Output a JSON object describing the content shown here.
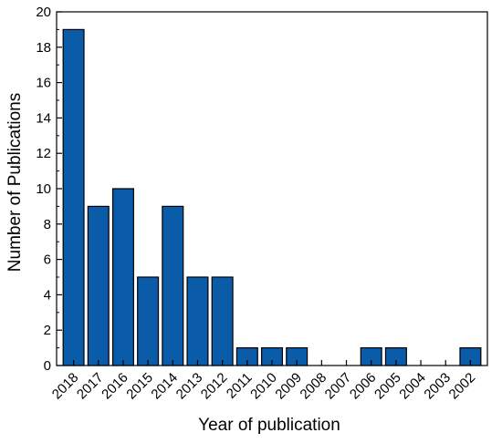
{
  "chart_data": {
    "type": "bar",
    "categories": [
      "2018",
      "2017",
      "2016",
      "2015",
      "2014",
      "2013",
      "2012",
      "2011",
      "2010",
      "2009",
      "2008",
      "2007",
      "2006",
      "2005",
      "2004",
      "2003",
      "2002"
    ],
    "values": [
      19,
      9,
      10,
      5,
      9,
      5,
      5,
      1,
      1,
      1,
      0,
      0,
      1,
      1,
      0,
      0,
      1
    ],
    "xlabel": "Year of publication",
    "ylabel": "Number of Publications",
    "ylim": [
      0,
      20
    ],
    "yticks": [
      0,
      2,
      4,
      6,
      8,
      10,
      12,
      14,
      16,
      18,
      20
    ],
    "bar_color": "#0a5ca8",
    "bar_edge_color": "#000000",
    "grid": false,
    "legend": "none"
  }
}
